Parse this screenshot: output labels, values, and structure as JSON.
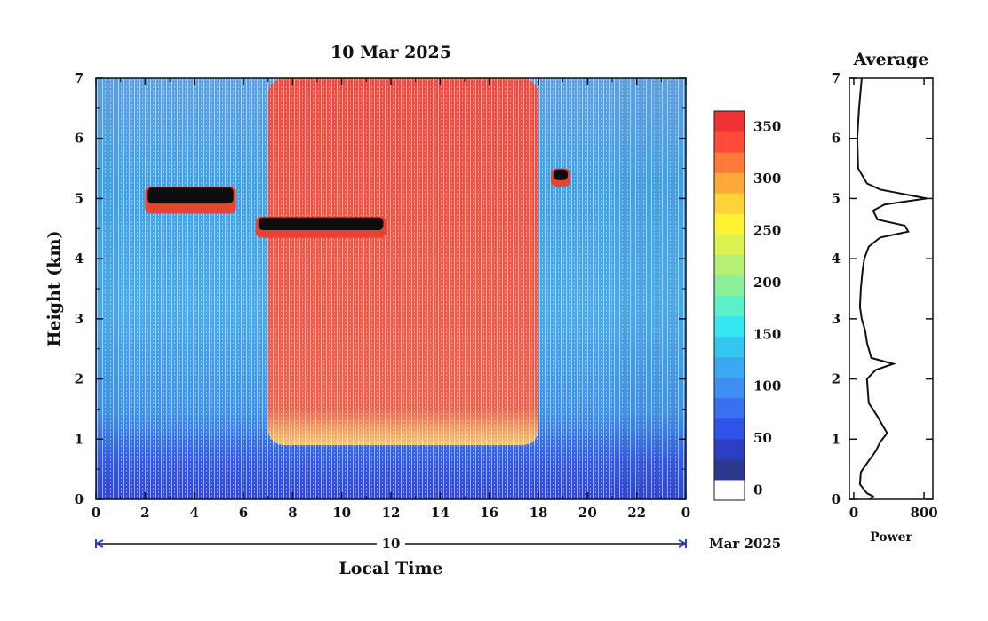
{
  "chart_data": [
    {
      "type": "heatmap",
      "title": "10 Mar 2025",
      "xlabel": "Local Time",
      "ylabel": "Height (km)",
      "x_ticks": [
        "0",
        "2",
        "4",
        "6",
        "8",
        "10",
        "12",
        "14",
        "16",
        "18",
        "20",
        "22",
        "0"
      ],
      "y_ticks": [
        "0",
        "1",
        "2",
        "3",
        "4",
        "5",
        "6",
        "7"
      ],
      "xlim": [
        0,
        24
      ],
      "ylim": [
        0,
        7
      ],
      "date_bar": {
        "day": "10",
        "suffix": "Mar 2025"
      },
      "colorbar": {
        "ticks": [
          "0",
          "50",
          "100",
          "150",
          "200",
          "250",
          "300",
          "350"
        ],
        "range": [
          0,
          375
        ],
        "colors": [
          "#ffffff",
          "#2b3a8f",
          "#2c3fc4",
          "#2f52e8",
          "#3a6ff0",
          "#3f8ff2",
          "#3aaaf0",
          "#35c6f0",
          "#33e6ef",
          "#5cf0c8",
          "#8cf09a",
          "#b4f073",
          "#dcf24f",
          "#fff233",
          "#ffd23a",
          "#ffa93a",
          "#ff7a3a",
          "#ff4a3a",
          "#f03232"
        ]
      },
      "features": [
        {
          "name": "cloud layer",
          "t_start": 2.0,
          "t_end": 5.7,
          "height_km": [
            4.75,
            5.2
          ]
        },
        {
          "name": "cloud layer",
          "t_start": 6.5,
          "t_end": 11.8,
          "height_km": [
            4.35,
            4.7
          ]
        },
        {
          "name": "cloud layer",
          "t_start": 18.5,
          "t_end": 19.3,
          "height_km": [
            5.2,
            5.5
          ]
        },
        {
          "name": "high backscatter daytime",
          "t_start": 7.0,
          "t_end": 18.0,
          "height_km": [
            0.9,
            7.0
          ]
        }
      ]
    },
    {
      "type": "line",
      "title": "Average",
      "xlabel": "Power",
      "ylabel": "",
      "x_ticks": [
        "0",
        "800"
      ],
      "y_ticks": [
        "0",
        "1",
        "2",
        "3",
        "4",
        "5",
        "6",
        "7"
      ],
      "xlim": [
        -50,
        900
      ],
      "ylim": [
        0,
        7
      ],
      "series": [
        {
          "points": [
            [
              90,
              7.0
            ],
            [
              60,
              6.5
            ],
            [
              40,
              6.0
            ],
            [
              50,
              5.5
            ],
            [
              150,
              5.25
            ],
            [
              300,
              5.15
            ],
            [
              830,
              5.0
            ],
            [
              350,
              4.9
            ],
            [
              220,
              4.8
            ],
            [
              270,
              4.65
            ],
            [
              580,
              4.55
            ],
            [
              620,
              4.45
            ],
            [
              300,
              4.35
            ],
            [
              170,
              4.2
            ],
            [
              120,
              4.0
            ],
            [
              100,
              3.8
            ],
            [
              80,
              3.5
            ],
            [
              70,
              3.2
            ],
            [
              90,
              3.0
            ],
            [
              130,
              2.8
            ],
            [
              150,
              2.6
            ],
            [
              200,
              2.35
            ],
            [
              450,
              2.25
            ],
            [
              250,
              2.15
            ],
            [
              150,
              2.0
            ],
            [
              160,
              1.8
            ],
            [
              170,
              1.6
            ],
            [
              260,
              1.4
            ],
            [
              380,
              1.1
            ],
            [
              300,
              0.95
            ],
            [
              250,
              0.8
            ],
            [
              150,
              0.6
            ],
            [
              80,
              0.45
            ],
            [
              70,
              0.25
            ],
            [
              150,
              0.1
            ],
            [
              220,
              0.05
            ],
            [
              180,
              0.0
            ]
          ]
        }
      ]
    }
  ]
}
